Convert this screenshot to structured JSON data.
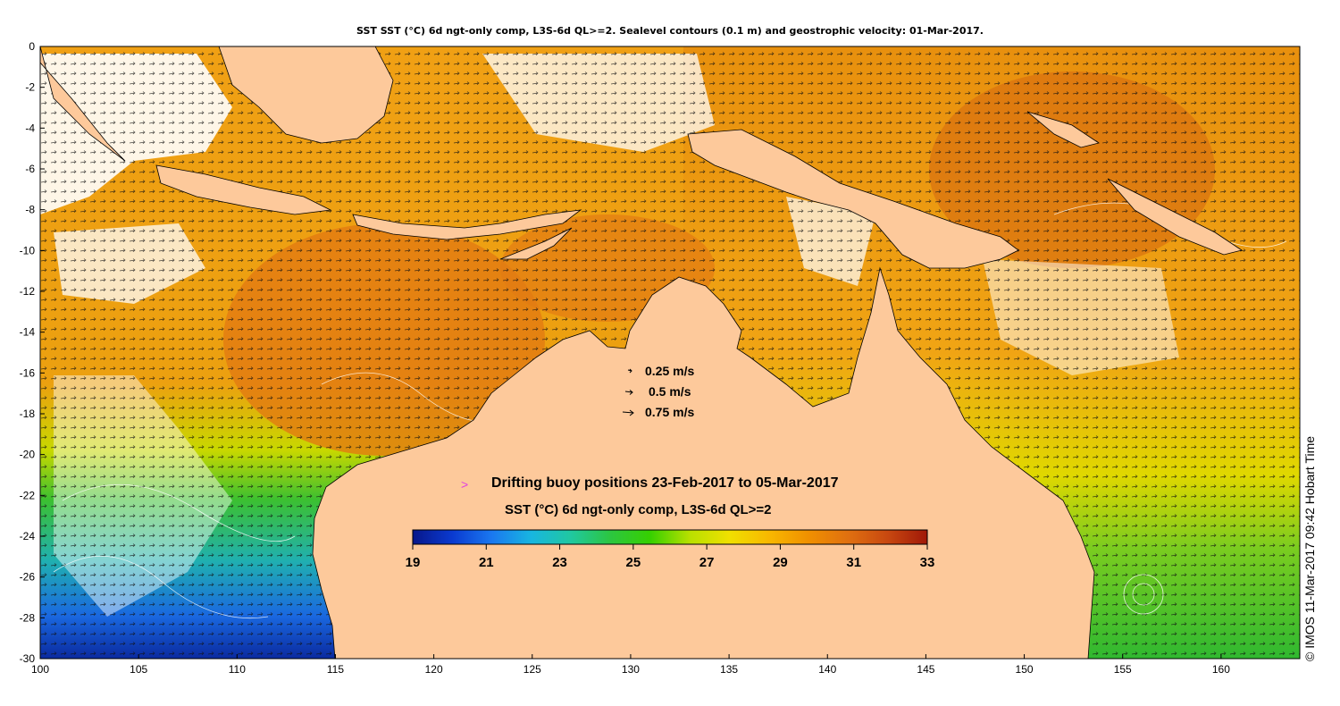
{
  "title": "SST SST (°C) 6d ngt-only comp, L3S-6d QL>=2. Sealevel contours (0.1 m) and geostrophic velocity: 01-Mar-2017.",
  "side_label": "© IMOS 11-Mar-2017 09:42 Hobart Time",
  "colors": {
    "land": "#fdc99b",
    "warm": "#e8900e",
    "hot": "#c85a10",
    "mid": "#f3ad16",
    "yellow": "#e8e000",
    "green": "#3cbf2e",
    "teal": "#20b8a8",
    "blue": "#1a6ee0",
    "navy": "#0a28a0",
    "cloud": "#ffffff"
  },
  "map": {
    "lon_range": [
      100,
      164
    ],
    "lat_range": [
      -30,
      0
    ],
    "x_ticks": [
      100,
      105,
      110,
      115,
      120,
      125,
      130,
      135,
      140,
      145,
      150,
      155,
      160
    ],
    "y_ticks": [
      0,
      -2,
      -4,
      -6,
      -8,
      -10,
      -12,
      -14,
      -16,
      -18,
      -20,
      -22,
      -24,
      -26,
      -28,
      -30
    ]
  },
  "velocity_legend": [
    {
      "label": "0.25 m/s",
      "speed": 0.25
    },
    {
      "label": "0.5 m/s",
      "speed": 0.5
    },
    {
      "label": "0.75 m/s",
      "speed": 0.75
    }
  ],
  "buoy_legend": {
    "marker": ">",
    "label": "Drifting buoy positions 23-Feb-2017 to 05-Mar-2017"
  },
  "colorbar": {
    "title": "SST (°C) 6d ngt-only comp, L3S-6d QL>=2",
    "range": [
      19,
      33
    ],
    "ticks": [
      "19",
      "21",
      "23",
      "25",
      "27",
      "29",
      "31",
      "33"
    ],
    "stops": [
      "#08178a",
      "#0a3ad0",
      "#1a78f0",
      "#18b6e0",
      "#20c8a0",
      "#2cc640",
      "#36d000",
      "#b8e000",
      "#f0e000",
      "#f8b800",
      "#f09000",
      "#e07010",
      "#c84810",
      "#a01808"
    ]
  }
}
